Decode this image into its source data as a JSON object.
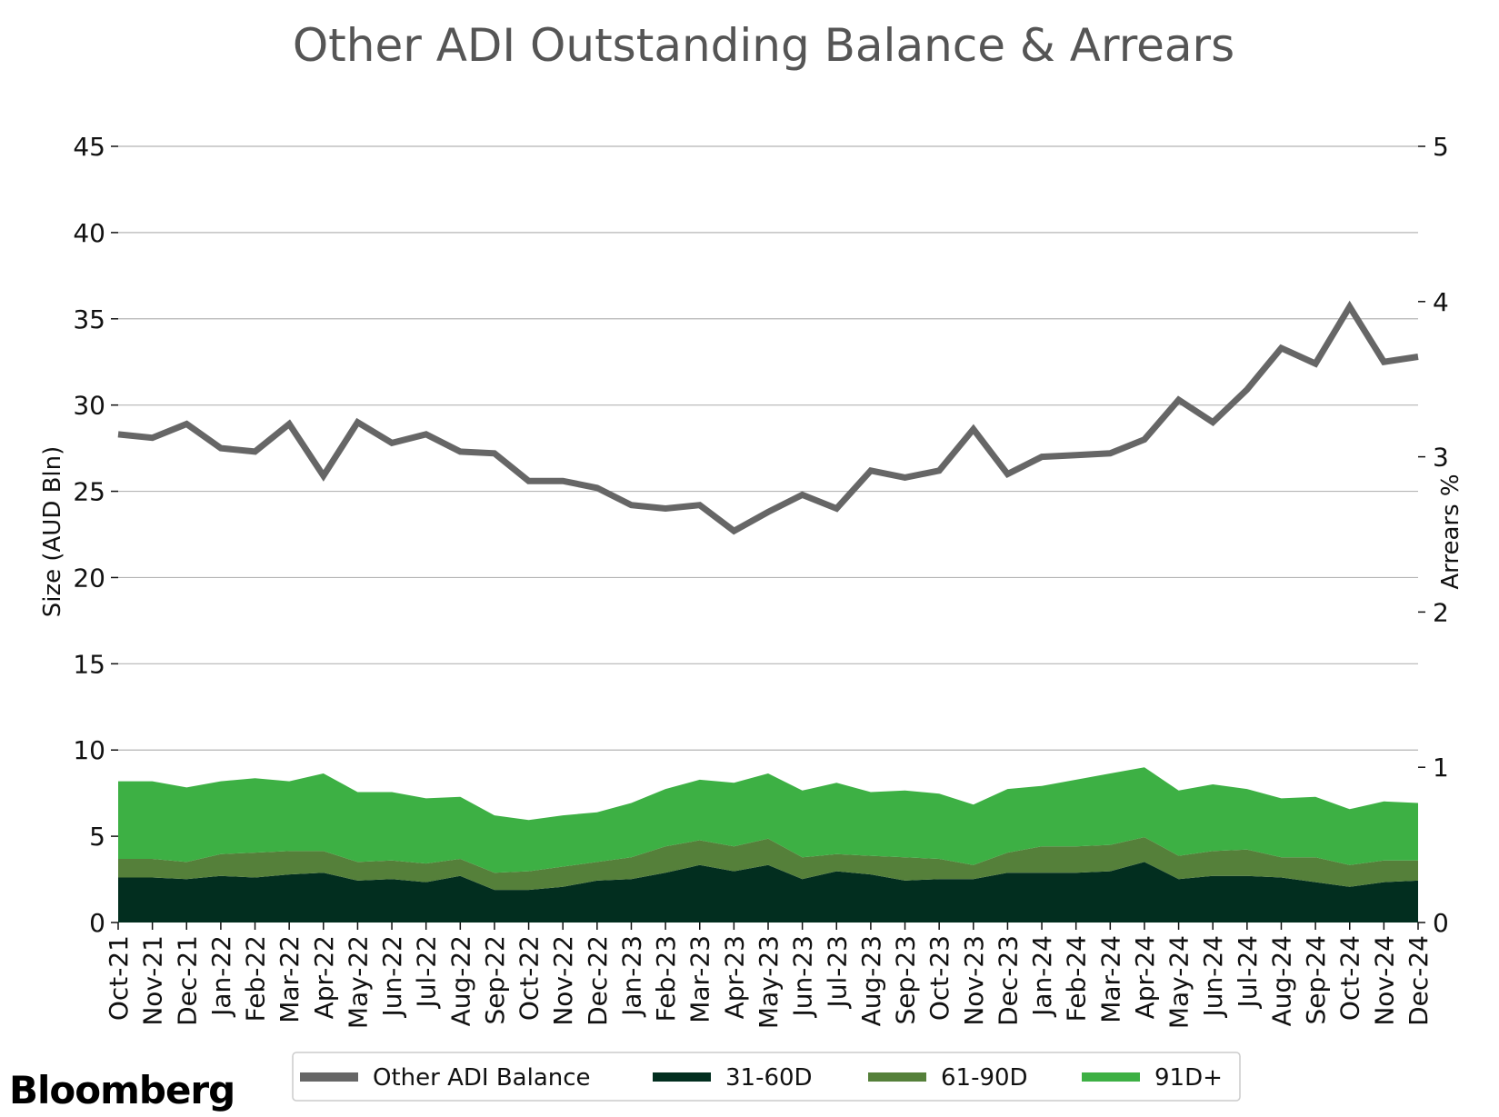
{
  "chart_data": {
    "type": "area",
    "title": "Other ADI Outstanding Balance & Arrears",
    "ylabel_left": "Size (AUD Bln)",
    "ylabel_right": "Arrears %",
    "ylim_left": [
      0,
      45
    ],
    "ylim_right": [
      0,
      5
    ],
    "yticks_left": [
      "0",
      "5",
      "10",
      "15",
      "20",
      "25",
      "30",
      "35",
      "40",
      "45"
    ],
    "yticks_right": [
      "0",
      "1",
      "2",
      "3",
      "4",
      "5"
    ],
    "grid": true,
    "legend_position": "bottom",
    "categories": [
      "Oct-21",
      "Nov-21",
      "Dec-21",
      "Jan-22",
      "Feb-22",
      "Mar-22",
      "Apr-22",
      "May-22",
      "Jun-22",
      "Jul-22",
      "Aug-22",
      "Sep-22",
      "Oct-22",
      "Nov-22",
      "Dec-22",
      "Jan-23",
      "Feb-23",
      "Mar-23",
      "Apr-23",
      "May-23",
      "Jun-23",
      "Jul-23",
      "Aug-23",
      "Sep-23",
      "Oct-23",
      "Nov-23",
      "Dec-23",
      "Jan-24",
      "Feb-24",
      "Mar-24",
      "Apr-24",
      "May-24",
      "Jun-24",
      "Jul-24",
      "Aug-24",
      "Sep-24",
      "Oct-24",
      "Nov-24",
      "Dec-24"
    ],
    "balance_series": {
      "name": "Other ADI Balance",
      "axis": "left",
      "color": "#666666",
      "values": [
        28.3,
        28.1,
        28.9,
        27.5,
        27.3,
        28.9,
        25.9,
        29.0,
        27.8,
        28.3,
        27.3,
        27.2,
        25.6,
        25.6,
        25.2,
        24.2,
        24.0,
        24.2,
        22.7,
        23.8,
        24.8,
        24.0,
        26.2,
        25.8,
        26.2,
        28.6,
        26.0,
        27.0,
        27.1,
        27.2,
        28.0,
        30.3,
        29.0,
        30.9,
        33.3,
        32.4,
        35.7,
        32.5,
        32.8
      ]
    },
    "arrears_series": [
      {
        "name": "31-60D",
        "axis": "right",
        "color": "#022e1f",
        "values": [
          0.29,
          0.29,
          0.28,
          0.3,
          0.29,
          0.31,
          0.32,
          0.27,
          0.28,
          0.26,
          0.3,
          0.21,
          0.21,
          0.23,
          0.27,
          0.28,
          0.32,
          0.37,
          0.33,
          0.37,
          0.28,
          0.33,
          0.31,
          0.27,
          0.28,
          0.28,
          0.32,
          0.32,
          0.32,
          0.33,
          0.39,
          0.28,
          0.3,
          0.3,
          0.29,
          0.26,
          0.23,
          0.26,
          0.27
        ]
      },
      {
        "name": "61-90D",
        "axis": "right",
        "color": "#55803a",
        "values": [
          0.12,
          0.12,
          0.11,
          0.14,
          0.16,
          0.15,
          0.14,
          0.12,
          0.12,
          0.12,
          0.11,
          0.11,
          0.12,
          0.13,
          0.12,
          0.14,
          0.17,
          0.16,
          0.16,
          0.17,
          0.14,
          0.11,
          0.12,
          0.15,
          0.13,
          0.09,
          0.13,
          0.17,
          0.17,
          0.17,
          0.16,
          0.15,
          0.16,
          0.17,
          0.13,
          0.16,
          0.14,
          0.14,
          0.13
        ]
      },
      {
        "name": "91D+",
        "axis": "right",
        "color": "#3db044",
        "values": [
          0.5,
          0.5,
          0.48,
          0.47,
          0.48,
          0.45,
          0.5,
          0.45,
          0.44,
          0.42,
          0.4,
          0.37,
          0.33,
          0.33,
          0.32,
          0.35,
          0.37,
          0.39,
          0.41,
          0.42,
          0.43,
          0.46,
          0.41,
          0.43,
          0.42,
          0.39,
          0.41,
          0.39,
          0.43,
          0.46,
          0.45,
          0.42,
          0.43,
          0.39,
          0.38,
          0.39,
          0.36,
          0.38,
          0.37
        ]
      }
    ]
  },
  "brand": "Bloomberg"
}
